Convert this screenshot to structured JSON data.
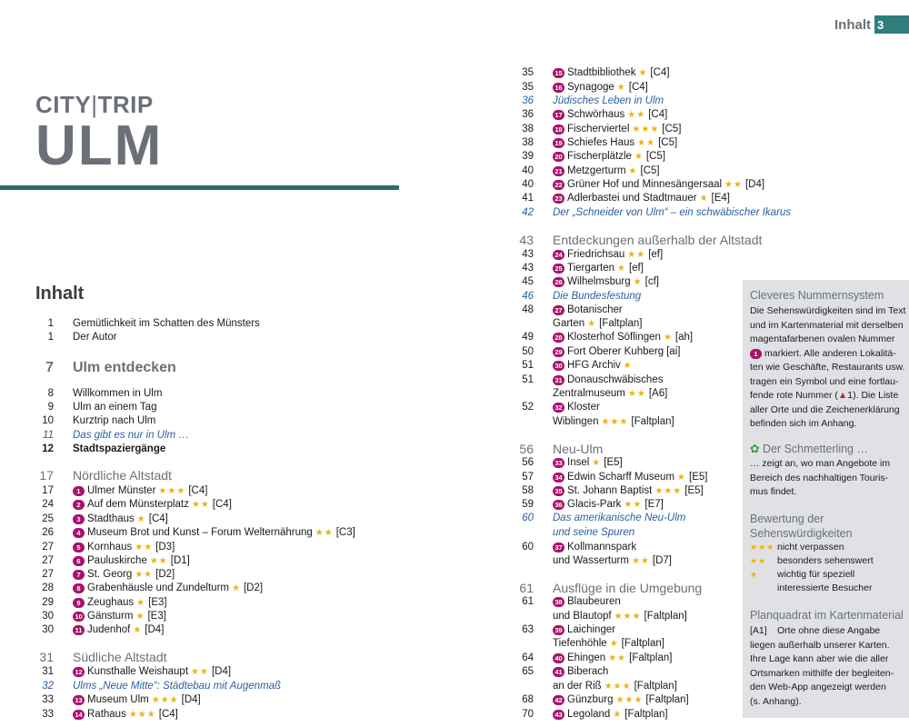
{
  "header": {
    "title": "Inhalt",
    "page": "3"
  },
  "brand": {
    "city": "CITY",
    "sep": "|",
    "trip": "TRIP",
    "name": "ULM"
  },
  "section_title": "Inhalt",
  "colors": {
    "accent": "#2f7e7c",
    "rule": "#2f6a6f",
    "badge": "#a8126b",
    "star": "#e8b50e",
    "link": "#2a5f9e",
    "sidebox": "#dfe1e4"
  },
  "left_column": [
    {
      "page": "1",
      "text": "Gemütlichkeit im Schatten des Münsters"
    },
    {
      "page": "1",
      "text": "Der Autor"
    },
    {
      "page": "7",
      "text": "Ulm entdecken",
      "style": "section big"
    },
    {
      "page": "8",
      "text": "Willkommen in Ulm"
    },
    {
      "page": "9",
      "text": "Ulm an einem Tag"
    },
    {
      "page": "10",
      "text": "Kurztrip nach Ulm"
    },
    {
      "page": "11",
      "text": "Das gibt es nur in Ulm …",
      "style": "italic"
    },
    {
      "page": "12",
      "text": "Stadtspaziergänge",
      "style": "bold"
    },
    {
      "page": "17",
      "text": "Nördliche Altstadt",
      "style": "section"
    },
    {
      "page": "17",
      "badge": "1",
      "text": "Ulmer Münster",
      "stars": "★★★",
      "grid": "[C4]"
    },
    {
      "page": "24",
      "badge": "2",
      "text": "Auf dem Münsterplatz",
      "stars": "★★",
      "grid": "[C4]"
    },
    {
      "page": "25",
      "badge": "3",
      "text": "Stadthaus",
      "stars": "★",
      "grid": "[C4]"
    },
    {
      "page": "26",
      "badge": "4",
      "text": "Museum Brot und Kunst – Forum Welternährung",
      "stars": "★★",
      "grid": "[C3]"
    },
    {
      "page": "27",
      "badge": "5",
      "text": "Kornhaus",
      "stars": "★★",
      "grid": "[D3]"
    },
    {
      "page": "27",
      "badge": "6",
      "text": "Pauluskirche",
      "stars": "★★",
      "grid": "[D1]"
    },
    {
      "page": "27",
      "badge": "7",
      "text": "St. Georg",
      "stars": "★★",
      "grid": "[D2]"
    },
    {
      "page": "28",
      "badge": "8",
      "text": "Grabenhäusle und Zundelturm",
      "stars": "★",
      "grid": "[D2]"
    },
    {
      "page": "29",
      "badge": "9",
      "text": "Zeughaus",
      "stars": "★",
      "grid": "[E3]"
    },
    {
      "page": "30",
      "badge": "10",
      "text": "Gänsturm",
      "stars": "★",
      "grid": "[E3]"
    },
    {
      "page": "30",
      "badge": "11",
      "text": "Judenhof",
      "stars": "★",
      "grid": "[D4]"
    },
    {
      "page": "31",
      "text": "Südliche Altstadt",
      "style": "section"
    },
    {
      "page": "31",
      "badge": "12",
      "text": "Kunsthalle Weishaupt",
      "stars": "★★",
      "grid": "[D4]"
    },
    {
      "page": "32",
      "text": "Ulms „Neue Mitte“: Städtebau mit Augenmaß",
      "style": "italic"
    },
    {
      "page": "33",
      "badge": "13",
      "text": "Museum Ulm",
      "stars": "★★★",
      "grid": "[D4]"
    },
    {
      "page": "33",
      "badge": "14",
      "text": "Rathaus",
      "stars": "★★★",
      "grid": "[C4]"
    }
  ],
  "right_column": [
    {
      "page": "35",
      "badge": "15",
      "text": "Stadtbibliothek",
      "stars": "★",
      "grid": "[C4]"
    },
    {
      "page": "35",
      "badge": "16",
      "text": "Synagoge",
      "stars": "★",
      "grid": "[C4]"
    },
    {
      "page": "36",
      "text": "Jüdisches Leben in Ulm",
      "style": "italic"
    },
    {
      "page": "36",
      "badge": "17",
      "text": "Schwörhaus",
      "stars": "★★",
      "grid": "[C4]"
    },
    {
      "page": "38",
      "badge": "18",
      "text": "Fischerviertel",
      "stars": "★★★",
      "grid": "[C5]"
    },
    {
      "page": "38",
      "badge": "19",
      "text": "Schiefes Haus",
      "stars": "★★",
      "grid": "[C5]"
    },
    {
      "page": "39",
      "badge": "20",
      "text": "Fischerplätzle",
      "stars": "★",
      "grid": "[C5]"
    },
    {
      "page": "40",
      "badge": "21",
      "text": "Metzgerturm",
      "stars": "★",
      "grid": "[C5]"
    },
    {
      "page": "40",
      "badge": "22",
      "text": "Grüner Hof und Minnesängersaal",
      "stars": "★★",
      "grid": "[D4]"
    },
    {
      "page": "41",
      "badge": "23",
      "text": "Adlerbastei und Stadtmauer",
      "stars": "★",
      "grid": "[E4]"
    },
    {
      "page": "42",
      "text": "Der „Schneider von Ulm“ – ein schwäbischer Ikarus",
      "style": "italic"
    },
    {
      "page": "43",
      "text": "Entdeckungen außerhalb der Altstadt",
      "style": "section"
    },
    {
      "page": "43",
      "badge": "24",
      "text": "Friedrichsau",
      "stars": "★★",
      "grid": "[ef]"
    },
    {
      "page": "43",
      "badge": "25",
      "text": "Tiergarten",
      "stars": "★",
      "grid": "[ef]"
    },
    {
      "page": "45",
      "badge": "26",
      "text": "Wilhelmsburg",
      "stars": "★",
      "grid": "[cf]"
    },
    {
      "page": "46",
      "text": "Die Bundesfestung",
      "style": "italic"
    },
    {
      "page": "48",
      "badge": "27",
      "text": "Botanischer"
    },
    {
      "page": "",
      "text": "Garten",
      "stars": "★",
      "grid": "[Faltplan]"
    },
    {
      "page": "49",
      "badge": "28",
      "text": "Klosterhof Söflingen",
      "stars": "★",
      "grid": "[ah]"
    },
    {
      "page": "50",
      "badge": "29",
      "text": "Fort Oberer Kuhberg",
      "grid": "[ai]"
    },
    {
      "page": "51",
      "badge": "30",
      "text": "HFG Archiv",
      "stars": "★"
    },
    {
      "page": "51",
      "badge": "31",
      "text": "Donauschwäbisches"
    },
    {
      "page": "",
      "text": "Zentralmuseum",
      "stars": "★★",
      "grid": "[A6]"
    },
    {
      "page": "52",
      "badge": "32",
      "text": "Kloster"
    },
    {
      "page": "",
      "text": "Wiblingen",
      "stars": "★★★",
      "grid": "[Faltplan]"
    },
    {
      "page": "56",
      "text": "Neu-Ulm",
      "style": "section"
    },
    {
      "page": "56",
      "badge": "33",
      "text": "Insel",
      "stars": "★",
      "grid": "[E5]"
    },
    {
      "page": "57",
      "badge": "34",
      "text": "Edwin Scharff Museum",
      "stars": "★",
      "grid": "[E5]"
    },
    {
      "page": "58",
      "badge": "35",
      "text": "St. Johann Baptist",
      "stars": "★★★",
      "grid": "[E5]"
    },
    {
      "page": "59",
      "badge": "36",
      "text": "Glacis-Park",
      "stars": "★★",
      "grid": "[E7]"
    },
    {
      "page": "60",
      "text": "Das amerikanische Neu-Ulm",
      "style": "italic"
    },
    {
      "page": "",
      "text": "und seine Spuren",
      "style": "italic"
    },
    {
      "page": "60",
      "badge": "37",
      "text": "Kollmannspark"
    },
    {
      "page": "",
      "text": "und Wasserturm",
      "stars": "★★",
      "grid": "[D7]"
    },
    {
      "page": "61",
      "text": "Ausflüge in die Umgebung",
      "style": "section"
    },
    {
      "page": "61",
      "badge": "38",
      "text": "Blaubeuren"
    },
    {
      "page": "",
      "text": "und Blautopf",
      "stars": "★★★",
      "grid": "[Faltplan]"
    },
    {
      "page": "63",
      "badge": "39",
      "text": "Laichinger"
    },
    {
      "page": "",
      "text": "Tiefenhöhle",
      "stars": "★",
      "grid": "[Faltplan]"
    },
    {
      "page": "64",
      "badge": "40",
      "text": "Ehingen",
      "stars": "★★",
      "grid": "[Faltplan]"
    },
    {
      "page": "65",
      "badge": "41",
      "text": "Biberach"
    },
    {
      "page": "",
      "text": "an der Riß",
      "stars": "★★★",
      "grid": "[Faltplan]"
    },
    {
      "page": "68",
      "badge": "42",
      "text": "Günzburg",
      "stars": "★★★",
      "grid": "[Faltplan]"
    },
    {
      "page": "70",
      "badge": "43",
      "text": "Legoland",
      "stars": "★",
      "grid": "[Faltplan]"
    }
  ],
  "sidebox": {
    "h1": "Cleveres Nummernsystem",
    "p1": [
      "Die Sehenswürdigkeiten sind im Text",
      "und im Kartenmaterial mit derselben",
      "magentafarbenen ovalen Nummer",
      "markiert. Alle anderen Lokalitä-",
      "ten wie Geschäfte, Restaurants usw.",
      "tragen ein Symbol und eine fortlau-",
      "fende rote Nummer (",
      "). Die Liste",
      "aller Orte und die Zeichenerklärung",
      "befinden sich im Anhang."
    ],
    "p1_badge": "1",
    "p1_redmark": "1",
    "h2": "Der Schmetterling …",
    "p2": [
      "… zeigt an, wo man Angebote im",
      "Bereich des nachhaltigen Touris-",
      "mus findet."
    ],
    "h3": [
      "Bewertung der",
      "Sehenswürdigkeiten"
    ],
    "legend": [
      {
        "stars": "★★★",
        "text": "nicht verpassen"
      },
      {
        "stars": "★★",
        "text": "besonders sehenswert"
      },
      {
        "stars": "★",
        "text": "wichtig für speziell"
      },
      {
        "stars": "",
        "text": "interessierte Besucher"
      }
    ],
    "h4": "Planquadrat im Kartenmaterial",
    "p4_code": "[A1]",
    "p4": [
      "Orte ohne diese Angabe",
      "liegen außerhalb unserer Karten.",
      "Ihre Lage kann aber wie die aller",
      "Ortsmarken mithilfe der begleiten-",
      "den Web-App angezeigt werden",
      "(s. Anhang)."
    ]
  }
}
